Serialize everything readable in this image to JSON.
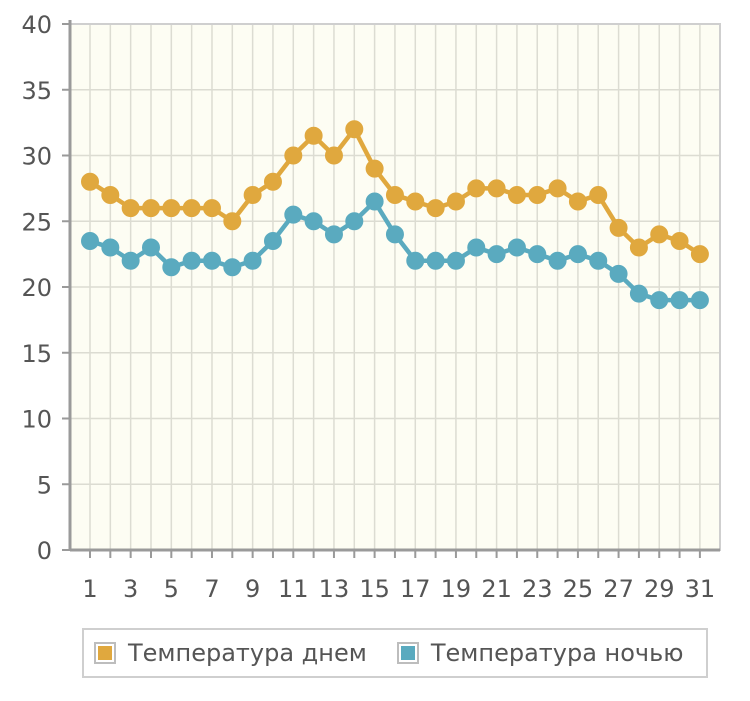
{
  "chart_data": {
    "type": "line",
    "title": "",
    "xlabel": "",
    "ylabel": "",
    "x": [
      1,
      2,
      3,
      4,
      5,
      6,
      7,
      8,
      9,
      10,
      11,
      12,
      13,
      14,
      15,
      16,
      17,
      18,
      19,
      20,
      21,
      22,
      23,
      24,
      25,
      26,
      27,
      28,
      29,
      30,
      31
    ],
    "x_tick_labels": [
      "1",
      "3",
      "5",
      "7",
      "9",
      "11",
      "13",
      "15",
      "17",
      "19",
      "21",
      "23",
      "25",
      "27",
      "29",
      "31"
    ],
    "y_ticks": [
      0,
      5,
      10,
      15,
      20,
      25,
      30,
      35,
      40
    ],
    "ylim": [
      0,
      40
    ],
    "grid": true,
    "legend_position": "bottom",
    "series": [
      {
        "name": "Температура днем",
        "color": "#e0a83e",
        "values": [
          28,
          27,
          26,
          26,
          26,
          26,
          26,
          25,
          27,
          28,
          30,
          31.5,
          30,
          32,
          29,
          27,
          26.5,
          26,
          26.5,
          27.5,
          27.5,
          27,
          27,
          27.5,
          26.5,
          27,
          24.5,
          23,
          24,
          23.5,
          22.5
        ]
      },
      {
        "name": "Температура ночью",
        "color": "#5aaabf",
        "values": [
          23.5,
          23,
          22,
          23,
          21.5,
          22,
          22,
          21.5,
          22,
          23.5,
          25.5,
          25,
          24,
          25,
          26.5,
          24,
          22,
          22,
          22,
          23,
          22.5,
          23,
          22.5,
          22,
          22.5,
          22,
          21,
          19.5,
          19,
          19,
          19
        ]
      }
    ]
  },
  "colors": {
    "plot_background": "#fdfdf3",
    "grid": "#dcdcd2",
    "axis": "#9a9a9a"
  }
}
